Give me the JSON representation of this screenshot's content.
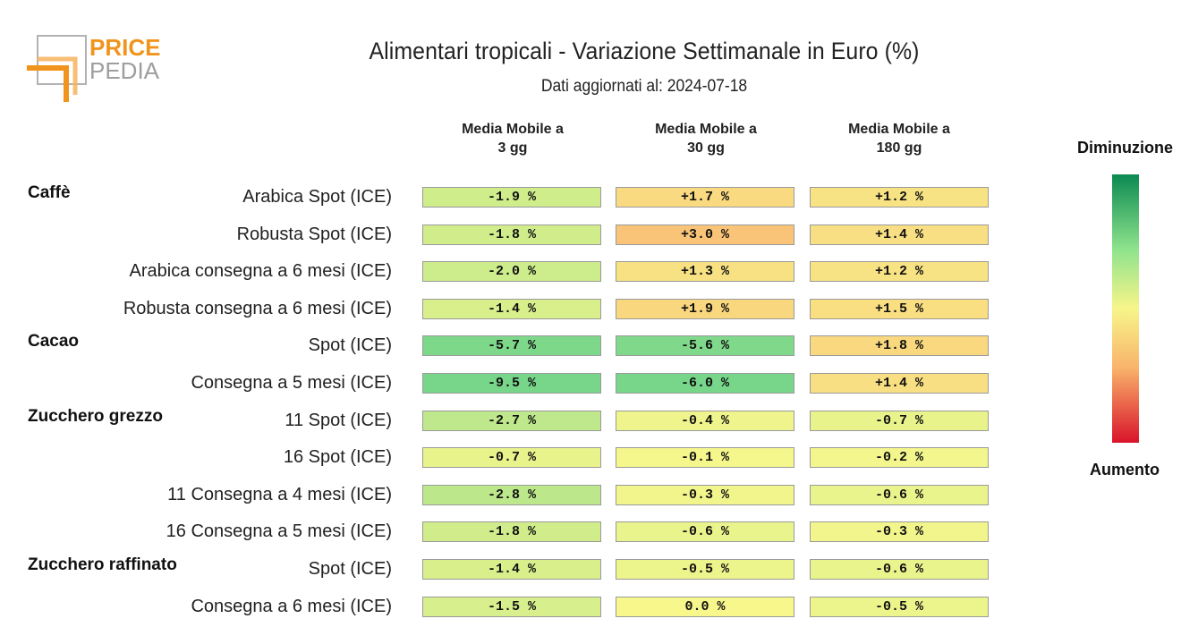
{
  "header": {
    "title": "Alimentari tropicali - Variazione Settimanale in Euro (%)",
    "subtitle": "Dati aggiornati al: 2024-07-18"
  },
  "logo": {
    "text_top": "PRICE",
    "text_bottom": "PEDIA",
    "accent": "#f0941d",
    "gray": "#9e9e9e"
  },
  "legend": {
    "top_label": "Diminuzione",
    "bottom_label": "Aumento",
    "colors": [
      "#0b8a52",
      "#8fe38c",
      "#f7f58a",
      "#f9b46b",
      "#d9132a"
    ]
  },
  "chart_data": {
    "type": "table",
    "title": "Alimentari tropicali - Variazione Settimanale in Euro (%)",
    "subtitle": "Dati aggiornati al: 2024-07-18",
    "columns": [
      "Media Mobile a\n3 gg",
      "Media Mobile a\n30 gg",
      "Media Mobile a\n180 gg"
    ],
    "groups": [
      {
        "name": "Caffè",
        "rows": [
          {
            "label": "Arabica Spot (ICE)",
            "values": [
              "-1.9 %",
              "+1.7 %",
              "+1.2 %"
            ]
          },
          {
            "label": "Robusta Spot (ICE)",
            "values": [
              "-1.8 %",
              "+3.0 %",
              "+1.4 %"
            ]
          },
          {
            "label": "Arabica consegna a 6 mesi (ICE)",
            "values": [
              "-2.0 %",
              "+1.3 %",
              "+1.2 %"
            ]
          },
          {
            "label": "Robusta consegna a 6 mesi (ICE)",
            "values": [
              "-1.4 %",
              "+1.9 %",
              "+1.5 %"
            ]
          }
        ]
      },
      {
        "name": "Cacao",
        "rows": [
          {
            "label": "Spot (ICE)",
            "values": [
              "-5.7 %",
              "-5.6 %",
              "+1.8 %"
            ]
          },
          {
            "label": "Consegna a 5 mesi (ICE)",
            "values": [
              "-9.5 %",
              "-6.0 %",
              "+1.4 %"
            ]
          }
        ]
      },
      {
        "name": "Zucchero grezzo",
        "rows": [
          {
            "label": "11 Spot (ICE)",
            "values": [
              "-2.7 %",
              "-0.4 %",
              "-0.7 %"
            ]
          },
          {
            "label": "16 Spot (ICE)",
            "values": [
              "-0.7 %",
              "-0.1 %",
              "-0.2 %"
            ]
          },
          {
            "label": "11 Consegna a 4 mesi (ICE)",
            "values": [
              "-2.8 %",
              "-0.3 %",
              "-0.6 %"
            ]
          },
          {
            "label": "16 Consegna a 5 mesi (ICE)",
            "values": [
              "-1.8 %",
              "-0.6 %",
              "-0.3 %"
            ]
          }
        ]
      },
      {
        "name": "Zucchero raffinato",
        "rows": [
          {
            "label": "Spot (ICE)",
            "values": [
              "-1.4 %",
              "-0.5 %",
              "-0.6 %"
            ]
          },
          {
            "label": "Consegna a 6 mesi (ICE)",
            "values": [
              "-1.5 %",
              "0.0 %",
              "-0.5 %"
            ]
          }
        ]
      }
    ]
  }
}
